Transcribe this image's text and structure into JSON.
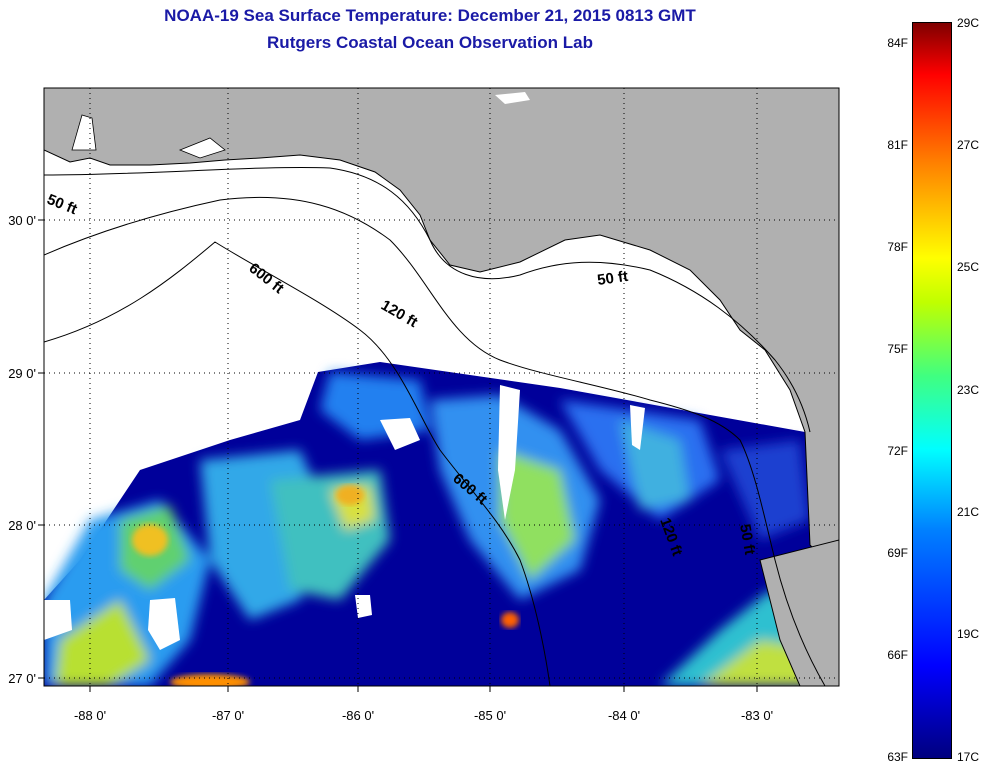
{
  "title": {
    "line1": "NOAA-19 Sea Surface Temperature:  December 21, 2015 0813 GMT",
    "line2": "Rutgers Coastal Ocean Observation Lab"
  },
  "map": {
    "lon_ticks": [
      "-88 0'",
      "-87 0'",
      "-86 0'",
      "-85 0'",
      "-84 0'",
      "-83 0'"
    ],
    "lat_ticks": [
      "30 0'",
      "29 0'",
      "28 0'",
      "27 0'"
    ],
    "grid": "dotted",
    "land_color": "#b0b0b0",
    "cloud_color": "#ffffff",
    "contours": [
      "50 ft",
      "120 ft",
      "600 ft",
      "50 ft",
      "600 ft",
      "120 ft",
      "50 ft"
    ]
  },
  "colorbar": {
    "fahrenheit": [
      "84F",
      "81F",
      "78F",
      "75F",
      "72F",
      "69F",
      "66F",
      "63F"
    ],
    "celsius": [
      "29C",
      "27C",
      "25C",
      "23C",
      "21C",
      "19C",
      "17C"
    ],
    "range_c": [
      17,
      29
    ],
    "colors": [
      "#00007f",
      "#0000ff",
      "#00ffff",
      "#ffff00",
      "#ff0000",
      "#7f0000"
    ]
  }
}
